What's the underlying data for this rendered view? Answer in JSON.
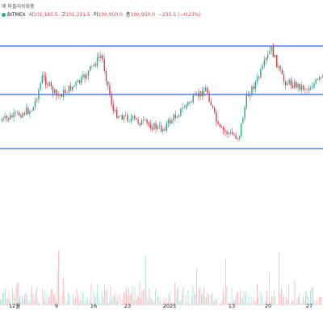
{
  "header": {
    "line1": "에 파볼리쉬화폼",
    "exchange": "BITMEX",
    "open_label": "시",
    "open": "101,185.5",
    "high_label": "고",
    "high": "101,211.5",
    "low_label": "저",
    "low": "100,950.0",
    "close_label": "종",
    "close": "100,950.0",
    "change": "−235.5 (−0.23%)"
  },
  "colors": {
    "up": "#22ab94",
    "down": "#f23645",
    "line": "#2962ff",
    "text": "#131722",
    "volume": "#b0b4bd"
  },
  "chart_data": {
    "type": "candlestick",
    "x_tick_labels": [
      "12월",
      "9",
      "16",
      "23",
      "2025",
      "13",
      "20",
      "27"
    ],
    "horizontal_levels": [
      "top",
      "middle",
      "bottom"
    ],
    "close_path_y": [
      80,
      82,
      85,
      90,
      95,
      92,
      98,
      102,
      108,
      112,
      118,
      123,
      126,
      130,
      128,
      133,
      138,
      134,
      130,
      128,
      125,
      120,
      118,
      115,
      113,
      110,
      112,
      116,
      120,
      124,
      130,
      134,
      140,
      146,
      150,
      148,
      144,
      140,
      136,
      132,
      128,
      124,
      120,
      118,
      114,
      110,
      108,
      106,
      104,
      100,
      98,
      96,
      92,
      88,
      84,
      80,
      82,
      86,
      90,
      95,
      100,
      104,
      102,
      98,
      94,
      90,
      88,
      92,
      96,
      100,
      96,
      92,
      88,
      86,
      90
    ],
    "volume_relative": [
      0.2,
      0.4,
      0.3,
      0.6,
      0.5,
      0.3,
      0.7,
      0.4,
      0.5,
      0.8,
      0.3,
      0.4,
      0.6,
      0.5,
      0.9,
      0.4,
      0.3,
      0.5,
      0.6,
      0.4,
      0.3,
      0.5,
      0.7,
      0.4,
      0.3,
      0.5,
      0.4,
      0.6,
      0.3,
      0.5,
      0.8,
      0.4,
      0.3,
      0.5,
      0.6,
      0.4,
      0.7,
      0.3,
      0.5,
      0.4,
      0.6,
      0.3,
      0.5,
      0.7,
      0.4,
      0.3,
      0.6,
      0.5,
      0.4,
      0.9,
      0.3,
      0.5,
      0.6,
      0.4,
      0.3,
      0.7,
      0.5,
      0.4,
      0.6,
      0.3,
      0.8,
      0.5,
      0.4,
      0.6,
      0.7,
      0.3,
      0.5,
      0.4,
      0.6,
      0.5,
      0.3,
      0.7,
      0.4,
      0.5,
      0.6
    ]
  }
}
